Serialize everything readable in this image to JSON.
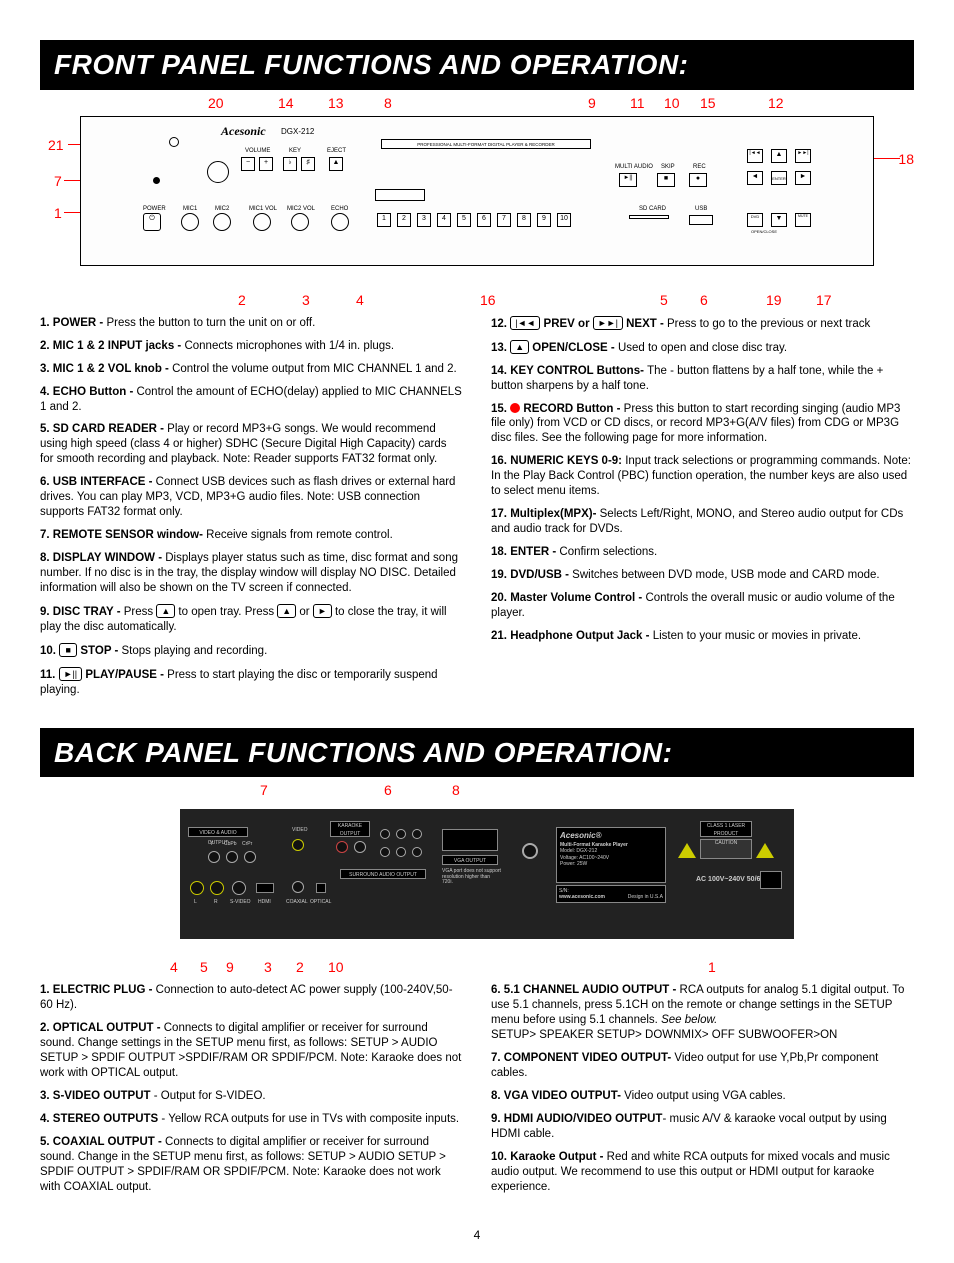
{
  "page_number": "4",
  "colors": {
    "accent": "#ff0000",
    "titlebar_bg": "#000000",
    "titlebar_fg": "#ffffff",
    "body_bg": "#ffffff",
    "body_fg": "#000000"
  },
  "front": {
    "title": "FRONT PANEL FUNCTIONS AND OPERATION:",
    "callouts": {
      "top": {
        "20": "20",
        "14": "14",
        "13": "13",
        "8": "8",
        "9": "9",
        "11": "11",
        "10": "10",
        "15": "15",
        "12": "12"
      },
      "left": {
        "21": "21",
        "7": "7",
        "1": "1"
      },
      "right": {
        "18": "18"
      },
      "bottom": {
        "2": "2",
        "3": "3",
        "4": "4",
        "16": "16",
        "5": "5",
        "6": "6",
        "19": "19",
        "17": "17"
      }
    },
    "panel_text": {
      "brand": "Acesonic",
      "model": "DGX-212",
      "header": "PROFESSIONAL MULTI-FORMAT DIGITAL PLAYER & RECORDER",
      "volume": "VOLUME",
      "key": "KEY",
      "eject": "EJECT",
      "power": "POWER",
      "mic1": "MIC1",
      "mic2": "MIC2",
      "mic1vol": "MIC1 VOL",
      "mic2vol": "MIC2 VOL",
      "echo": "ECHO",
      "multiaudio": "MULTI AUDIO",
      "skip": "SKIP",
      "rec": "REC",
      "sdcard": "SD CARD",
      "usb": "USB",
      "minus": "−",
      "plus": "+",
      "flat": "♭",
      "sharp": "♯",
      "eject_sym": "▲",
      "prev": "|◄◄",
      "next": "►►|",
      "up": "▲",
      "left": "◄",
      "right": "►",
      "down": "▼",
      "playpause": "►||",
      "stop": "■",
      "record": "●",
      "enter": "ENTER",
      "dvd": "DVD",
      "usb_mute": "MUTE",
      "openclose": "OPEN/CLOSE"
    },
    "left_col": [
      {
        "n": "1.",
        "b": "POWER - ",
        "t": "Press the button to turn the unit on or off."
      },
      {
        "n": "2.",
        "b": "MIC 1 & 2 INPUT jacks - ",
        "t": "Connects microphones with 1/4 in. plugs."
      },
      {
        "n": "3.",
        "b": "MIC 1 & 2 VOL knob - ",
        "t": "Control the volume output from MIC CHANNEL 1 and 2."
      },
      {
        "n": "4.",
        "b": "ECHO Button - ",
        "t": "Control the amount of ECHO(delay) applied to MIC CHANNELS 1 and 2."
      },
      {
        "n": "5.",
        "b": "SD CARD READER - ",
        "t": "Play or record MP3+G songs. We would recommend using high speed (class 4 or higher) SDHC (Secure Digital High Capacity) cards for smooth recording and playback. Note: Reader supports FAT32 format only."
      },
      {
        "n": "6.",
        "b": "  USB INTERFACE - ",
        "t": "Connect USB devices such as flash drives or external hard drives. You can play MP3, VCD, MP3+G audio files. Note: USB connection supports FAT32 format only."
      },
      {
        "n": "7.",
        "b": "REMOTE SENSOR window- ",
        "t": "Receive signals  from remote control."
      },
      {
        "n": "8.",
        "b": "DISPLAY WINDOW - ",
        "t": "Displays player status such as time, disc format and song number. If no disc is in the tray, the display window will display NO DISC. Detailed information will also be shown on the TV screen if connected."
      },
      {
        "n": "9.",
        "b": "DISC TRAY - ",
        "t": "Press ",
        "btn1": "▲",
        "t2": " to open tray. Press ",
        "btn2": "▲",
        "t3": " or ",
        "btn3": "►",
        "t4": " to close the tray, it will play the disc   automatically."
      },
      {
        "n": "10.",
        "btn": "■",
        "b": " STOP - ",
        "t": "Stops playing and recording."
      },
      {
        "n": "11.",
        "btn": "►||",
        "b": " PLAY/PAUSE - ",
        "t": "Press  to start playing the disc or temporarily suspend playing."
      }
    ],
    "right_col": [
      {
        "n": "12.",
        "btn": "|◄◄",
        "b": " PREV or ",
        "btn2": "►►|",
        "b2": " NEXT - ",
        "t": "Press to go to the previous or next track"
      },
      {
        "n": "13.",
        "btn": "▲",
        "b": " OPEN/CLOSE - ",
        "t": "  Used to open and close disc tray."
      },
      {
        "n": "14.",
        "b": "KEY CONTROL Buttons- ",
        "t": "  The - button flattens by a half tone, while the + button sharpens by a half tone."
      },
      {
        "n": "15.",
        "rec": true,
        "b": " RECORD Button - ",
        "t": "Press this button to start recording singing (audio MP3 file only) from VCD or CD discs, or record MP3+G(A/V files) from CDG or MP3G disc files. See the following page for more information."
      },
      {
        "n": "16.",
        "b": "NUMERIC KEYS 0-9: ",
        "t": "Input track selections or programming commands. Note: In the Play Back Control (PBC) function operation, the number keys are also used to select menu items."
      },
      {
        "n": "17.",
        "b": "Multiplex(MPX)- ",
        "t": "Selects  Left/Right, MONO, and Stereo audio output for CDs and audio track for DVDs."
      },
      {
        "n": "18.",
        "b": "ENTER - ",
        "t": "Confirm selections."
      },
      {
        "n": "19.",
        "b": "DVD/USB - ",
        "t": "Switches between DVD mode, USB mode and CARD mode."
      },
      {
        "n": "20.",
        "b": "Master Volume Control - ",
        "t": "Controls the overall music or audio volume of the player."
      },
      {
        "n": "21.",
        "b": "Headphone Output Jack - ",
        "t": "Listen to your music or movies in private."
      }
    ]
  },
  "back": {
    "title": "BACK PANEL FUNCTIONS AND OPERATION:",
    "callouts": {
      "top": {
        "7": "7",
        "6": "6",
        "8": "8"
      },
      "bottom": {
        "4": "4",
        "5": "5",
        "9": "9",
        "3": "3",
        "2": "2",
        "10": "10",
        "1": "1"
      }
    },
    "panel_text": {
      "video_audio": "VIDEO & AUDIO OUTPUT",
      "video": "VIDEO",
      "karaoke_out": "KARAOKE OUTPUT",
      "surround": "SURROUND AUDIO OUTPUT",
      "vga": "VGA OUTPUT",
      "vga_note": "VGA port does not support resolution higher than 720i.",
      "brand": "Acesonic®",
      "model_line": "Multi-Format Karaoke Player",
      "model": "Model: DGX-212",
      "voltage": "Voltage: AC100~240V",
      "power": "Power: 25W",
      "sn": "S/N:",
      "design": "Design in U.S.A",
      "site": "www.acesonic.com",
      "laser": "CLASS 1 LASER PRODUCT",
      "caution": "CAUTION",
      "ac": "AC 100V~240V 50/60Hz",
      "ypbpr_y": "Y",
      "ypbpr_pb": "CbPb",
      "ypbpr_pr": "CrPr",
      "l": "L",
      "r": "R",
      "svideo": "S-VIDEO",
      "hdmi": "HDMI",
      "coaxial": "COAXIAL",
      "optical": "OPTICAL",
      "fl": "FL",
      "fr": "FR",
      "sl": "SL",
      "sr": "SR",
      "cen": "CEN",
      "sw": "S.W"
    },
    "left_col": [
      {
        "n": "1.",
        "b": "ELECTRIC PLUG - ",
        "t": "Connection to auto-detect AC power supply (100-240V,50-60 Hz)."
      },
      {
        "n": "2.",
        "b": "OPTICAL OUTPUT - ",
        "t": "Connects to digital amplifier or receiver for surround sound. Change settings in the SETUP menu first, as follows: SETUP > AUDIO SETUP > SPDIF OUTPUT >SPDIF/RAM OR SPDIF/PCM. Note: Karaoke does not work with OPTICAL output."
      },
      {
        "n": "3.",
        "b": "S-VIDEO OUTPUT",
        "t": " - Output for  S-VIDEO."
      },
      {
        "n": "4.",
        "b": "STEREO OUTPUTS",
        "t": " - Yellow RCA outputs for use in TVs with composite inputs."
      },
      {
        "n": "5.",
        "b": "COAXIAL OUTPUT - ",
        "t": "Connects to digital amplifier or receiver for surround sound. Change in the SETUP menu first, as follows: SETUP > AUDIO SETUP > SPDIF OUTPUT > SPDIF/RAM OR SPDIF/PCM. Note: Karaoke does not work with COAXIAL output."
      }
    ],
    "right_col": [
      {
        "n": "6.",
        "b": "5.1 CHANNEL AUDIO OUTPUT - ",
        "t": "RCA outputs for analog 5.1 digital output. To use 5.1 channels, press 5.1CH on the remote or change settings in the SETUP menu before using 5.1 channels. ",
        "i": "See below.",
        "extra": "SETUP> SPEAKER SETUP>  DOWNMIX> OFF  SUBWOOFER>ON"
      },
      {
        "n": "7.",
        "b": "COMPONENT VIDEO OUTPUT- ",
        "t": "Video output for use Y,Pb,Pr component cables."
      },
      {
        "n": "8.",
        "b": "VGA VIDEO OUTPUT- ",
        "t": "Video output using VGA cables."
      },
      {
        "n": "9.",
        "b": "HDMI AUDIO/VIDEO OUTPUT",
        "t": "- music A/V & karaoke vocal output by using HDMI cable."
      },
      {
        "n": "10.",
        "b": "Karaoke Output - ",
        "t": "Red and white RCA outputs for mixed vocals and music audio output. We recommend to use this output or HDMI output for karaoke experience."
      }
    ]
  }
}
